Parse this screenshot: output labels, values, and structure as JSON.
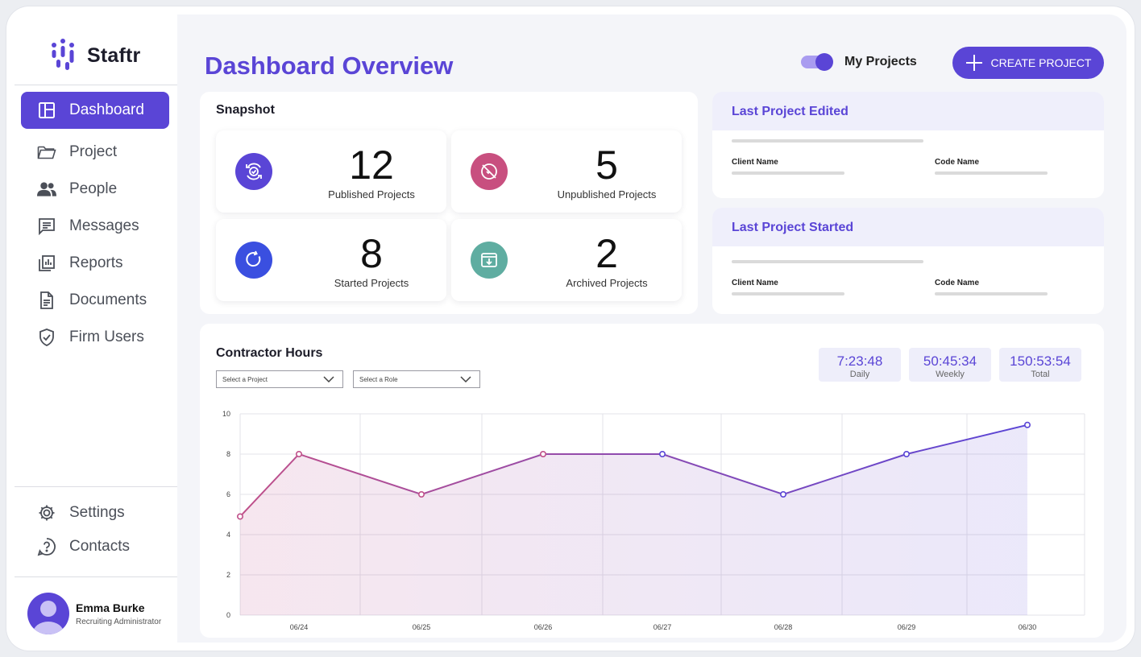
{
  "brand": {
    "name": "Staftr"
  },
  "sidebar": {
    "items": [
      {
        "label": "Dashboard",
        "icon": "dashboard-icon",
        "active": true
      },
      {
        "label": "Project",
        "icon": "folder-icon",
        "active": false
      },
      {
        "label": "People",
        "icon": "people-icon",
        "active": false
      },
      {
        "label": "Messages",
        "icon": "messages-icon",
        "active": false
      },
      {
        "label": "Reports",
        "icon": "reports-icon",
        "active": false
      },
      {
        "label": "Documents",
        "icon": "document-icon",
        "active": false
      },
      {
        "label": "Firm Users",
        "icon": "shield-icon",
        "active": false
      }
    ],
    "bottom_items": [
      {
        "label": "Settings",
        "icon": "gear-icon"
      },
      {
        "label": "Contacts",
        "icon": "help-icon"
      }
    ],
    "user": {
      "name": "Emma Burke",
      "role": "Recruiting Administrator"
    }
  },
  "header": {
    "title": "Dashboard Overview",
    "toggle_label": "My Projects",
    "toggle_on": true,
    "create_button": "CREATE PROJECT"
  },
  "snapshot": {
    "title": "Snapshot",
    "stats": [
      {
        "value": "12",
        "label": "Published Projects",
        "color": "#5a45d6",
        "icon": "published-icon"
      },
      {
        "value": "5",
        "label": "Unpublished Projects",
        "color": "#c84f7f",
        "icon": "unpublished-icon"
      },
      {
        "value": "8",
        "label": "Started Projects",
        "color": "#3a4fe0",
        "icon": "refresh-icon"
      },
      {
        "value": "2",
        "label": "Archived Projects",
        "color": "#5fada1",
        "icon": "archive-icon"
      }
    ]
  },
  "last_edited": {
    "title": "Last Project Edited",
    "client_label": "Client Name",
    "code_label": "Code Name"
  },
  "last_started": {
    "title": "Last Project Started",
    "client_label": "Client Name",
    "code_label": "Code Name"
  },
  "contractor_hours": {
    "title": "Contractor Hours",
    "project_select_placeholder": "Select a Project",
    "role_select_placeholder": "Select a Role",
    "times": [
      {
        "value": "7:23:48",
        "label": "Daily"
      },
      {
        "value": "50:45:34",
        "label": "Weekly"
      },
      {
        "value": "150:53:54",
        "label": "Total"
      }
    ]
  },
  "chart_data": {
    "type": "area",
    "categories": [
      "06/24",
      "06/25",
      "06/26",
      "06/27",
      "06/28",
      "06/29",
      "06/30"
    ],
    "x": [
      "06/24 start",
      "06/24",
      "06/25",
      "06/26",
      "06/27",
      "06/28",
      "06/29",
      "06/30"
    ],
    "values": [
      4.9,
      8,
      6,
      8,
      8,
      6,
      8,
      9.45
    ],
    "ylim": [
      0,
      10
    ],
    "yticks": [
      0,
      2,
      4,
      6,
      8,
      10
    ],
    "grid": true,
    "colors": {
      "start": "#c0508a",
      "end": "#5a45d6"
    }
  },
  "colors": {
    "accent": "#5a45d6"
  }
}
